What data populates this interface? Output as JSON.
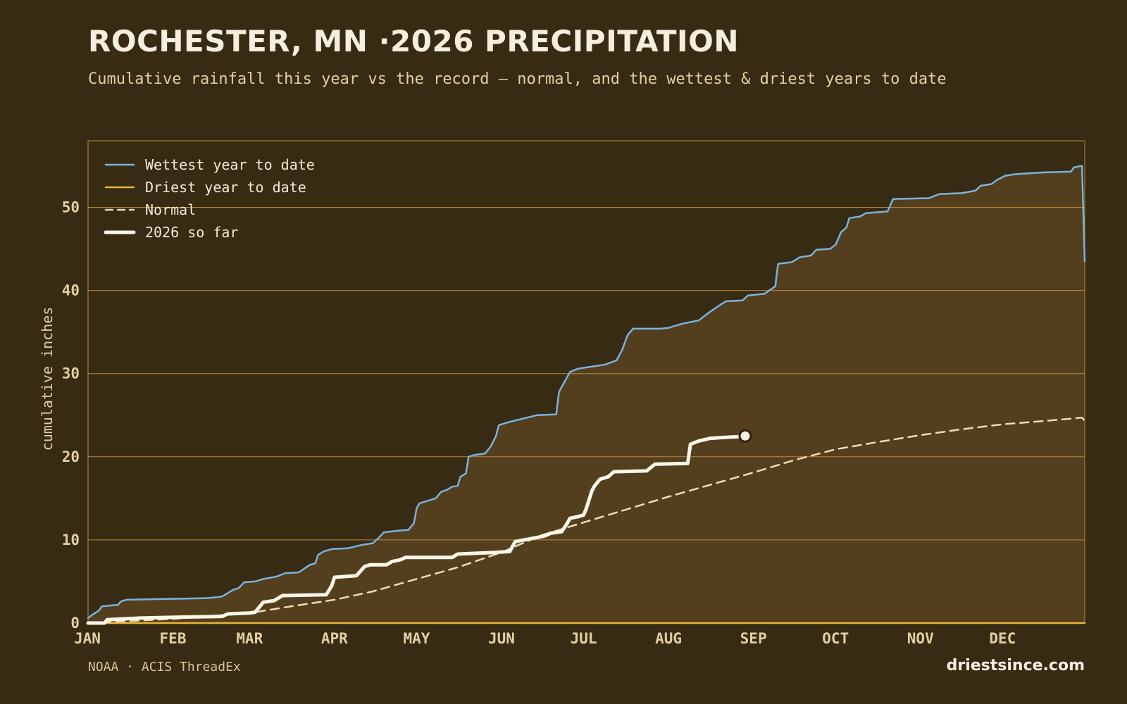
{
  "header": {
    "title": "ROCHESTER, MN ·2026 PRECIPITATION",
    "subtitle": "Cumulative rainfall this year vs the record — normal, and the wettest & driest years to date"
  },
  "footer": {
    "source": "NOAA · ACIS ThreadEx",
    "brand": "driestsince.com"
  },
  "colors": {
    "background": "#382b14",
    "fill": "#533f1e",
    "grid": "#b8883a",
    "wettest": "#7ab3dd",
    "driest": "#e9b53c",
    "normal": "#eedcb5",
    "current": "#fbf6ea"
  },
  "chart_data": {
    "type": "line",
    "title": "ROCHESTER, MN ·2026 PRECIPITATION",
    "ylabel": "cumulative inches",
    "xlabel": "",
    "x_unit": "day of year",
    "xlim": [
      1,
      365
    ],
    "ylim": [
      0,
      55
    ],
    "yticks": [
      0,
      10,
      20,
      30,
      40,
      50
    ],
    "xticks": [
      {
        "label": "JAN",
        "day": 1
      },
      {
        "label": "FEB",
        "day": 32
      },
      {
        "label": "MAR",
        "day": 60
      },
      {
        "label": "APR",
        "day": 91
      },
      {
        "label": "MAY",
        "day": 121
      },
      {
        "label": "JUN",
        "day": 152
      },
      {
        "label": "JUL",
        "day": 182
      },
      {
        "label": "AUG",
        "day": 213
      },
      {
        "label": "SEP",
        "day": 244
      },
      {
        "label": "OCT",
        "day": 274
      },
      {
        "label": "NOV",
        "day": 305
      },
      {
        "label": "DEC",
        "day": 335
      }
    ],
    "grid": true,
    "legend_position": "top-left",
    "series": [
      {
        "name": "Wettest year to date",
        "style": "solid",
        "points": [
          [
            1,
            0.6
          ],
          [
            3,
            1.1
          ],
          [
            5,
            1.5
          ],
          [
            6,
            2.0
          ],
          [
            12,
            2.2
          ],
          [
            13,
            2.6
          ],
          [
            15,
            2.8
          ],
          [
            30,
            2.9
          ],
          [
            44,
            3.0
          ],
          [
            48,
            3.1
          ],
          [
            50,
            3.2
          ],
          [
            52,
            3.6
          ],
          [
            54,
            4.0
          ],
          [
            56,
            4.2
          ],
          [
            58,
            4.9
          ],
          [
            62,
            5.0
          ],
          [
            65,
            5.3
          ],
          [
            70,
            5.6
          ],
          [
            73,
            6.0
          ],
          [
            78,
            6.1
          ],
          [
            82,
            7.0
          ],
          [
            84,
            7.2
          ],
          [
            85,
            8.2
          ],
          [
            87,
            8.6
          ],
          [
            90,
            8.9
          ],
          [
            96,
            9.0
          ],
          [
            101,
            9.4
          ],
          [
            105,
            9.6
          ],
          [
            107,
            10.2
          ],
          [
            109,
            10.9
          ],
          [
            114,
            11.1
          ],
          [
            118,
            11.2
          ],
          [
            120,
            12.0
          ],
          [
            121,
            13.8
          ],
          [
            122,
            14.4
          ],
          [
            124,
            14.6
          ],
          [
            128,
            15.0
          ],
          [
            130,
            15.8
          ],
          [
            132,
            16.0
          ],
          [
            134,
            16.4
          ],
          [
            136,
            16.5
          ],
          [
            137,
            17.6
          ],
          [
            139,
            18.0
          ],
          [
            140,
            20.0
          ],
          [
            142,
            20.2
          ],
          [
            146,
            20.4
          ],
          [
            148,
            21.2
          ],
          [
            150,
            22.5
          ],
          [
            151,
            23.8
          ],
          [
            155,
            24.2
          ],
          [
            160,
            24.6
          ],
          [
            165,
            25.0
          ],
          [
            172,
            25.1
          ],
          [
            173,
            27.8
          ],
          [
            175,
            29.0
          ],
          [
            177,
            30.2
          ],
          [
            180,
            30.6
          ],
          [
            186,
            30.9
          ],
          [
            190,
            31.1
          ],
          [
            194,
            31.6
          ],
          [
            196,
            32.8
          ],
          [
            198,
            34.6
          ],
          [
            200,
            35.4
          ],
          [
            210,
            35.4
          ],
          [
            213,
            35.5
          ],
          [
            218,
            36.0
          ],
          [
            224,
            36.4
          ],
          [
            228,
            37.4
          ],
          [
            232,
            38.3
          ],
          [
            234,
            38.7
          ],
          [
            240,
            38.8
          ],
          [
            242,
            39.4
          ],
          [
            248,
            39.6
          ],
          [
            252,
            40.5
          ],
          [
            253,
            43.2
          ],
          [
            258,
            43.4
          ],
          [
            261,
            44.0
          ],
          [
            265,
            44.2
          ],
          [
            267,
            44.9
          ],
          [
            272,
            45.0
          ],
          [
            274,
            45.5
          ],
          [
            276,
            47.0
          ],
          [
            278,
            47.6
          ],
          [
            279,
            48.7
          ],
          [
            283,
            48.9
          ],
          [
            285,
            49.3
          ],
          [
            293,
            49.5
          ],
          [
            295,
            51.0
          ],
          [
            308,
            51.1
          ],
          [
            312,
            51.6
          ],
          [
            320,
            51.7
          ],
          [
            325,
            52.0
          ],
          [
            327,
            52.6
          ],
          [
            331,
            52.8
          ],
          [
            333,
            53.3
          ],
          [
            336,
            53.8
          ],
          [
            340,
            54.0
          ],
          [
            350,
            54.2
          ],
          [
            360,
            54.3
          ],
          [
            361,
            54.8
          ],
          [
            364,
            55.0
          ],
          [
            365,
            43.5
          ]
        ]
      },
      {
        "name": "Driest year to date",
        "style": "solid",
        "points": [
          [
            1,
            0.0
          ],
          [
            365,
            0.0
          ]
        ]
      },
      {
        "name": "Normal",
        "style": "dashed",
        "points": [
          [
            1,
            0.0
          ],
          [
            32,
            0.5
          ],
          [
            60,
            1.2
          ],
          [
            75,
            2.0
          ],
          [
            91,
            2.8
          ],
          [
            105,
            3.8
          ],
          [
            121,
            5.3
          ],
          [
            136,
            6.7
          ],
          [
            152,
            8.5
          ],
          [
            166,
            10.5
          ],
          [
            182,
            12.1
          ],
          [
            197,
            13.6
          ],
          [
            213,
            15.2
          ],
          [
            228,
            16.6
          ],
          [
            244,
            18.1
          ],
          [
            259,
            19.6
          ],
          [
            274,
            20.9
          ],
          [
            290,
            21.8
          ],
          [
            305,
            22.6
          ],
          [
            320,
            23.3
          ],
          [
            335,
            23.9
          ],
          [
            350,
            24.3
          ],
          [
            364,
            24.7
          ],
          [
            365,
            24.3
          ]
        ]
      },
      {
        "name": "2026 so far",
        "style": "thick",
        "end_marker": true,
        "points": [
          [
            1,
            0.0
          ],
          [
            7,
            0.0
          ],
          [
            8,
            0.4
          ],
          [
            20,
            0.6
          ],
          [
            33,
            0.7
          ],
          [
            50,
            0.8
          ],
          [
            52,
            1.1
          ],
          [
            60,
            1.2
          ],
          [
            62,
            1.3
          ],
          [
            65,
            2.5
          ],
          [
            69,
            2.7
          ],
          [
            72,
            3.3
          ],
          [
            88,
            3.4
          ],
          [
            90,
            4.5
          ],
          [
            91,
            5.5
          ],
          [
            99,
            5.7
          ],
          [
            102,
            6.8
          ],
          [
            104,
            7.0
          ],
          [
            110,
            7.0
          ],
          [
            112,
            7.4
          ],
          [
            115,
            7.6
          ],
          [
            117,
            7.9
          ],
          [
            134,
            7.9
          ],
          [
            136,
            8.3
          ],
          [
            150,
            8.5
          ],
          [
            155,
            8.6
          ],
          [
            157,
            9.8
          ],
          [
            165,
            10.3
          ],
          [
            168,
            10.5
          ],
          [
            170,
            10.8
          ],
          [
            174,
            11.0
          ],
          [
            176,
            12.0
          ],
          [
            177,
            12.6
          ],
          [
            180,
            12.8
          ],
          [
            182,
            13.0
          ],
          [
            183,
            13.8
          ],
          [
            185,
            15.9
          ],
          [
            186,
            16.5
          ],
          [
            188,
            17.3
          ],
          [
            191,
            17.6
          ],
          [
            193,
            18.2
          ],
          [
            205,
            18.3
          ],
          [
            208,
            19.1
          ],
          [
            220,
            19.2
          ],
          [
            221,
            21.5
          ],
          [
            224,
            21.9
          ],
          [
            228,
            22.2
          ],
          [
            232,
            22.3
          ],
          [
            238,
            22.4
          ],
          [
            241,
            22.5
          ]
        ]
      }
    ]
  }
}
